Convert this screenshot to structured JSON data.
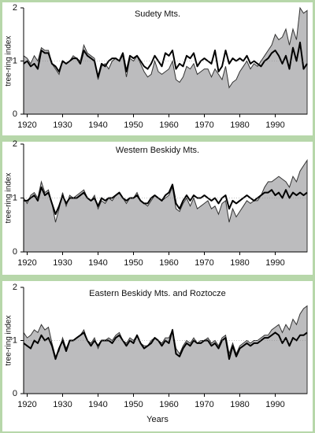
{
  "chart_data": [
    {
      "type": "line",
      "title": "Sudety Mts.",
      "ylabel": "tree-ring index",
      "xlim": [
        1919,
        1999
      ],
      "xticks": [
        1920,
        1930,
        1940,
        1950,
        1960,
        1970,
        1980,
        1990
      ],
      "ylim": [
        0,
        2
      ],
      "yticks": [
        0,
        1,
        2
      ],
      "refline": 1,
      "x": [
        1919,
        1920,
        1921,
        1922,
        1923,
        1924,
        1925,
        1926,
        1927,
        1928,
        1929,
        1930,
        1931,
        1932,
        1933,
        1934,
        1935,
        1936,
        1937,
        1938,
        1939,
        1940,
        1941,
        1942,
        1943,
        1944,
        1945,
        1946,
        1947,
        1948,
        1949,
        1950,
        1951,
        1952,
        1953,
        1954,
        1955,
        1956,
        1957,
        1958,
        1959,
        1960,
        1961,
        1962,
        1963,
        1964,
        1965,
        1966,
        1967,
        1968,
        1969,
        1970,
        1971,
        1972,
        1973,
        1974,
        1975,
        1976,
        1977,
        1978,
        1979,
        1980,
        1981,
        1982,
        1983,
        1984,
        1985,
        1986,
        1987,
        1988,
        1989,
        1990,
        1991,
        1992,
        1993,
        1994,
        1995,
        1996,
        1997,
        1998,
        1999
      ],
      "series": [
        {
          "style": "area",
          "color": "#bcbcbe",
          "values": [
            1.1,
            1.05,
            0.95,
            1.1,
            1.0,
            1.25,
            1.2,
            1.2,
            0.95,
            0.85,
            0.75,
            1.0,
            0.95,
            1.0,
            1.1,
            1.05,
            1.0,
            1.3,
            1.15,
            1.1,
            1.05,
            0.65,
            0.9,
            0.95,
            0.85,
            1.0,
            1.05,
            1.0,
            1.1,
            0.7,
            1.05,
            1.0,
            1.1,
            0.95,
            0.8,
            0.7,
            0.75,
            1.0,
            0.8,
            0.75,
            0.8,
            0.85,
            1.0,
            0.65,
            0.6,
            0.7,
            0.9,
            0.85,
            0.95,
            0.75,
            0.8,
            0.85,
            0.85,
            0.7,
            0.85,
            0.75,
            0.65,
            0.9,
            0.5,
            0.6,
            0.65,
            0.8,
            0.9,
            1.0,
            0.85,
            0.95,
            0.9,
            1.0,
            1.1,
            1.2,
            1.3,
            1.5,
            1.4,
            1.45,
            1.6,
            1.3,
            1.6,
            1.4,
            2.0,
            1.9,
            1.95
          ]
        },
        {
          "style": "line",
          "color": "#000000",
          "values": [
            0.95,
            1.0,
            0.9,
            0.95,
            0.85,
            1.2,
            1.15,
            1.15,
            0.95,
            0.9,
            0.8,
            1.0,
            0.95,
            1.0,
            1.05,
            1.05,
            0.95,
            1.2,
            1.1,
            1.05,
            1.0,
            0.7,
            0.95,
            0.9,
            1.0,
            1.05,
            1.05,
            1.0,
            1.15,
            0.8,
            1.1,
            1.05,
            1.1,
            1.0,
            0.9,
            0.85,
            0.95,
            1.1,
            1.0,
            0.9,
            1.15,
            1.1,
            1.2,
            0.85,
            0.95,
            0.9,
            1.1,
            1.05,
            1.15,
            0.9,
            1.0,
            1.05,
            1.0,
            0.95,
            1.2,
            0.8,
            0.9,
            1.2,
            0.95,
            1.05,
            1.0,
            1.05,
            1.0,
            1.1,
            0.95,
            1.0,
            0.95,
            0.9,
            1.0,
            1.05,
            1.15,
            1.2,
            1.1,
            0.95,
            1.1,
            0.85,
            1.25,
            1.0,
            1.35,
            0.85,
            0.95
          ]
        }
      ]
    },
    {
      "type": "line",
      "title": "Western Beskidy Mts.",
      "ylabel": "tree-ring index",
      "xlim": [
        1919,
        1999
      ],
      "xticks": [
        1920,
        1930,
        1940,
        1950,
        1960,
        1970,
        1980,
        1990
      ],
      "ylim": [
        0,
        2
      ],
      "yticks": [
        0,
        1,
        2
      ],
      "refline": 1,
      "x": [
        1919,
        1920,
        1921,
        1922,
        1923,
        1924,
        1925,
        1926,
        1927,
        1928,
        1929,
        1930,
        1931,
        1932,
        1933,
        1934,
        1935,
        1936,
        1937,
        1938,
        1939,
        1940,
        1941,
        1942,
        1943,
        1944,
        1945,
        1946,
        1947,
        1948,
        1949,
        1950,
        1951,
        1952,
        1953,
        1954,
        1955,
        1956,
        1957,
        1958,
        1959,
        1960,
        1961,
        1962,
        1963,
        1964,
        1965,
        1966,
        1967,
        1968,
        1969,
        1970,
        1971,
        1972,
        1973,
        1974,
        1975,
        1976,
        1977,
        1978,
        1979,
        1980,
        1981,
        1982,
        1983,
        1984,
        1985,
        1986,
        1987,
        1988,
        1989,
        1990,
        1991,
        1992,
        1993,
        1994,
        1995,
        1996,
        1997,
        1998,
        1999
      ],
      "series": [
        {
          "style": "area",
          "color": "#bcbcbe",
          "values": [
            1.0,
            0.9,
            1.05,
            1.1,
            1.0,
            1.3,
            1.1,
            1.15,
            0.9,
            0.55,
            0.8,
            1.1,
            0.85,
            1.05,
            1.0,
            1.05,
            1.1,
            1.15,
            1.0,
            0.95,
            1.05,
            0.8,
            0.95,
            0.9,
            1.0,
            0.95,
            1.05,
            1.1,
            1.0,
            0.9,
            1.0,
            1.0,
            1.1,
            0.95,
            0.9,
            0.85,
            0.95,
            1.05,
            1.0,
            0.95,
            1.0,
            1.05,
            1.2,
            0.8,
            0.75,
            0.9,
            1.0,
            0.85,
            1.0,
            0.8,
            0.85,
            0.9,
            0.95,
            0.8,
            0.85,
            0.7,
            0.9,
            0.95,
            0.55,
            0.8,
            0.65,
            0.75,
            0.85,
            0.95,
            0.9,
            0.95,
            0.95,
            1.05,
            1.2,
            1.3,
            1.3,
            1.35,
            1.4,
            1.35,
            1.3,
            1.2,
            1.4,
            1.3,
            1.5,
            1.6,
            1.7
          ]
        },
        {
          "style": "line",
          "color": "#000000",
          "values": [
            0.95,
            0.95,
            1.0,
            1.05,
            0.95,
            1.2,
            1.05,
            1.1,
            0.9,
            0.7,
            0.85,
            1.05,
            0.9,
            1.0,
            1.0,
            1.0,
            1.05,
            1.1,
            1.0,
            0.95,
            1.0,
            0.85,
            1.0,
            0.95,
            1.0,
            1.0,
            1.05,
            1.1,
            1.0,
            0.95,
            1.0,
            1.0,
            1.05,
            0.95,
            0.9,
            0.9,
            1.0,
            1.05,
            1.0,
            0.95,
            1.05,
            1.1,
            1.25,
            0.9,
            0.8,
            0.95,
            1.05,
            0.95,
            1.05,
            1.0,
            1.0,
            1.05,
            1.0,
            0.95,
            1.0,
            0.9,
            1.0,
            1.05,
            0.8,
            0.95,
            0.9,
            0.95,
            1.0,
            1.05,
            1.0,
            0.95,
            1.0,
            1.05,
            1.1,
            1.1,
            1.15,
            1.05,
            1.1,
            1.0,
            1.15,
            1.0,
            1.1,
            1.05,
            1.1,
            1.05,
            1.1
          ]
        }
      ]
    },
    {
      "type": "line",
      "title": "Eastern Beskidy Mts. and Roztocze",
      "ylabel": "tree-ring index",
      "xlabel": "Years",
      "xlim": [
        1919,
        1999
      ],
      "xticks": [
        1920,
        1930,
        1940,
        1950,
        1960,
        1970,
        1980,
        1990
      ],
      "ylim": [
        0,
        2
      ],
      "yticks": [
        0,
        1,
        2
      ],
      "refline": 1,
      "x": [
        1919,
        1920,
        1921,
        1922,
        1923,
        1924,
        1925,
        1926,
        1927,
        1928,
        1929,
        1930,
        1931,
        1932,
        1933,
        1934,
        1935,
        1936,
        1937,
        1938,
        1939,
        1940,
        1941,
        1942,
        1943,
        1944,
        1945,
        1946,
        1947,
        1948,
        1949,
        1950,
        1951,
        1952,
        1953,
        1954,
        1955,
        1956,
        1957,
        1958,
        1959,
        1960,
        1961,
        1962,
        1963,
        1964,
        1965,
        1966,
        1967,
        1968,
        1969,
        1970,
        1971,
        1972,
        1973,
        1974,
        1975,
        1976,
        1977,
        1978,
        1979,
        1980,
        1981,
        1982,
        1983,
        1984,
        1985,
        1986,
        1987,
        1988,
        1989,
        1990,
        1991,
        1992,
        1993,
        1994,
        1995,
        1996,
        1997,
        1998,
        1999
      ],
      "series": [
        {
          "style": "area",
          "color": "#bcbcbe",
          "values": [
            1.15,
            1.05,
            1.1,
            1.2,
            1.15,
            1.3,
            1.2,
            1.25,
            0.95,
            0.7,
            0.8,
            1.05,
            0.85,
            1.0,
            1.0,
            1.05,
            1.1,
            1.2,
            1.0,
            0.95,
            1.05,
            0.85,
            1.0,
            1.0,
            1.05,
            1.0,
            1.1,
            1.15,
            1.0,
            0.95,
            1.05,
            1.0,
            1.1,
            0.95,
            0.9,
            0.9,
            1.0,
            1.05,
            1.0,
            0.95,
            1.05,
            1.05,
            1.2,
            0.85,
            0.75,
            0.9,
            1.0,
            0.95,
            1.05,
            0.95,
            1.0,
            1.0,
            1.05,
            0.95,
            1.0,
            0.9,
            1.05,
            1.1,
            0.75,
            0.95,
            0.75,
            0.9,
            0.95,
            1.0,
            0.95,
            1.0,
            1.0,
            1.05,
            1.1,
            1.1,
            1.2,
            1.25,
            1.3,
            1.15,
            1.3,
            1.2,
            1.4,
            1.3,
            1.5,
            1.6,
            1.65
          ]
        },
        {
          "style": "line",
          "color": "#000000",
          "values": [
            0.95,
            0.9,
            0.85,
            1.0,
            0.95,
            1.1,
            1.0,
            1.05,
            0.9,
            0.65,
            0.85,
            1.0,
            0.8,
            1.0,
            1.0,
            1.05,
            1.1,
            1.15,
            1.0,
            0.9,
            1.0,
            0.9,
            1.0,
            1.0,
            1.0,
            0.95,
            1.05,
            1.1,
            1.0,
            0.9,
            1.0,
            0.95,
            1.1,
            0.95,
            0.85,
            0.9,
            0.95,
            1.05,
            1.0,
            0.9,
            1.0,
            0.95,
            1.2,
            0.75,
            0.7,
            0.85,
            0.95,
            0.9,
            1.0,
            0.95,
            0.95,
            1.0,
            1.0,
            0.9,
            0.95,
            0.85,
            1.0,
            1.05,
            0.65,
            0.9,
            0.7,
            0.85,
            0.9,
            0.95,
            0.9,
            0.95,
            0.95,
            1.0,
            1.05,
            1.05,
            1.1,
            1.15,
            1.1,
            0.95,
            1.05,
            0.9,
            1.05,
            1.0,
            1.1,
            1.1,
            1.15
          ]
        }
      ]
    }
  ]
}
